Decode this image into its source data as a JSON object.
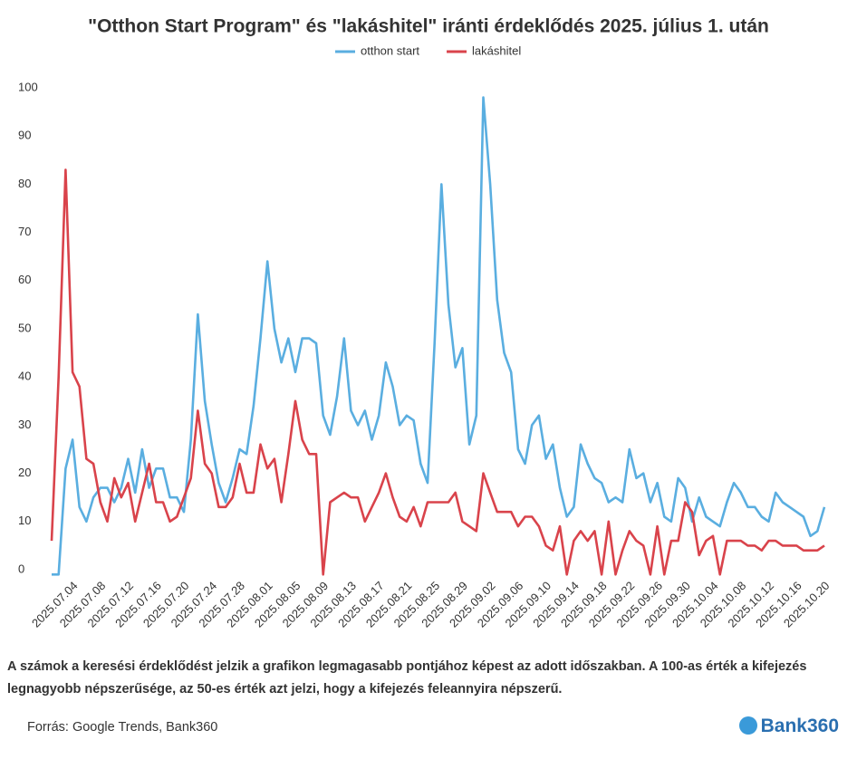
{
  "chart_data": {
    "type": "line",
    "title": "\"Otthon Start Program\" és \"lakáshitel\" iránti érdeklődés 2025. július 1. után",
    "x": [
      "2025.07.01",
      "2025.07.02",
      "2025.07.03",
      "2025.07.04",
      "2025.07.05",
      "2025.07.06",
      "2025.07.07",
      "2025.07.08",
      "2025.07.09",
      "2025.07.10",
      "2025.07.11",
      "2025.07.12",
      "2025.07.13",
      "2025.07.14",
      "2025.07.15",
      "2025.07.16",
      "2025.07.17",
      "2025.07.18",
      "2025.07.19",
      "2025.07.20",
      "2025.07.21",
      "2025.07.22",
      "2025.07.23",
      "2025.07.24",
      "2025.07.25",
      "2025.07.26",
      "2025.07.27",
      "2025.07.28",
      "2025.07.29",
      "2025.07.30",
      "2025.07.31",
      "2025.08.01",
      "2025.08.02",
      "2025.08.03",
      "2025.08.04",
      "2025.08.05",
      "2025.08.06",
      "2025.08.07",
      "2025.08.08",
      "2025.08.09",
      "2025.08.10",
      "2025.08.11",
      "2025.08.12",
      "2025.08.13",
      "2025.08.14",
      "2025.08.15",
      "2025.08.16",
      "2025.08.17",
      "2025.08.18",
      "2025.08.19",
      "2025.08.20",
      "2025.08.21",
      "2025.08.22",
      "2025.08.23",
      "2025.08.24",
      "2025.08.25",
      "2025.08.26",
      "2025.08.27",
      "2025.08.28",
      "2025.08.29",
      "2025.08.30",
      "2025.08.31",
      "2025.09.01",
      "2025.09.02",
      "2025.09.03",
      "2025.09.04",
      "2025.09.05",
      "2025.09.06",
      "2025.09.07",
      "2025.09.08",
      "2025.09.09",
      "2025.09.10",
      "2025.09.11",
      "2025.09.12",
      "2025.09.13",
      "2025.09.14",
      "2025.09.15",
      "2025.09.16",
      "2025.09.17",
      "2025.09.18",
      "2025.09.19",
      "2025.09.20",
      "2025.09.21",
      "2025.09.22",
      "2025.09.23",
      "2025.09.24",
      "2025.09.25",
      "2025.09.26",
      "2025.09.27",
      "2025.09.28",
      "2025.09.29",
      "2025.09.30",
      "2025.10.01",
      "2025.10.02",
      "2025.10.03",
      "2025.10.04",
      "2025.10.05",
      "2025.10.06",
      "2025.10.07",
      "2025.10.08",
      "2025.10.09",
      "2025.10.10",
      "2025.10.11",
      "2025.10.12",
      "2025.10.13",
      "2025.10.14",
      "2025.10.15",
      "2025.10.16",
      "2025.10.17",
      "2025.10.18",
      "2025.10.19",
      "2025.10.20"
    ],
    "xticks": [
      "2025.07.04",
      "2025.07.08",
      "2025.07.12",
      "2025.07.16",
      "2025.07.20",
      "2025.07.24",
      "2025.07.28",
      "2025.08.01",
      "2025.08.05",
      "2025.08.09",
      "2025.08.13",
      "2025.08.17",
      "2025.08.21",
      "2025.08.25",
      "2025.08.29",
      "2025.09.02",
      "2025.09.06",
      "2025.09.10",
      "2025.09.14",
      "2025.09.18",
      "2025.09.22",
      "2025.09.26",
      "2025.09.30",
      "2025.10.04",
      "2025.10.08",
      "2025.10.12",
      "2025.10.16",
      "2025.10.20"
    ],
    "series": [
      {
        "name": "otthon start",
        "color": "#5aaee0",
        "values": [
          -1,
          -1,
          21,
          27,
          13,
          10,
          15,
          17,
          17,
          14,
          17,
          23,
          16,
          25,
          17,
          21,
          21,
          15,
          15,
          12,
          27,
          53,
          35,
          26,
          18,
          14,
          19,
          25,
          24,
          34,
          48,
          64,
          50,
          43,
          48,
          41,
          48,
          48,
          47,
          32,
          28,
          36,
          48,
          33,
          30,
          33,
          27,
          32,
          43,
          38,
          30,
          32,
          31,
          22,
          18,
          47,
          80,
          55,
          42,
          46,
          26,
          32,
          98,
          80,
          56,
          45,
          41,
          25,
          22,
          30,
          32,
          23,
          26,
          17,
          11,
          13,
          26,
          22,
          19,
          18,
          14,
          15,
          14,
          25,
          19,
          20,
          14,
          18,
          11,
          10,
          19,
          17,
          10,
          15,
          11,
          10,
          9,
          14,
          18,
          16,
          13,
          13,
          11,
          10,
          16,
          14,
          13,
          12,
          11,
          7,
          8,
          13
        ]
      },
      {
        "name": "lakáshitel",
        "color": "#d9434b",
        "values": [
          6,
          40,
          83,
          41,
          38,
          23,
          22,
          14,
          10,
          19,
          15,
          18,
          10,
          16,
          22,
          14,
          14,
          10,
          11,
          15,
          19,
          33,
          22,
          20,
          13,
          13,
          15,
          22,
          16,
          16,
          26,
          21,
          23,
          14,
          24,
          35,
          27,
          24,
          24,
          -1,
          14,
          15,
          16,
          15,
          15,
          10,
          13,
          16,
          20,
          15,
          11,
          10,
          13,
          9,
          14,
          14,
          14,
          14,
          16,
          10,
          9,
          8,
          20,
          16,
          12,
          12,
          12,
          9,
          11,
          11,
          9,
          5,
          4,
          9,
          -1,
          6,
          8,
          6,
          8,
          -1,
          10,
          -1,
          4,
          8,
          6,
          5,
          -1,
          9,
          -1,
          6,
          6,
          14,
          12,
          3,
          6,
          7,
          -1,
          6,
          6,
          6,
          5,
          5,
          4,
          6,
          6,
          5,
          5,
          5,
          4,
          4,
          4,
          5
        ]
      }
    ],
    "ylim": [
      0,
      100
    ],
    "yticks": [
      0,
      10,
      20,
      30,
      40,
      50,
      60,
      70,
      80,
      90,
      100
    ],
    "grid": false,
    "legend": "top",
    "note": "A számok a keresési érdeklődést jelzik a grafikon legmagasabb pontjához képest az adott időszakban. A 100-as érték a kifejezés legnagyobb népszerűsége, az 50-es érték azt jelzi, hogy a kifejezés feleannyira népszerű.",
    "source": "Forrás: Google Trends, Bank360",
    "logo": "Bank360"
  }
}
